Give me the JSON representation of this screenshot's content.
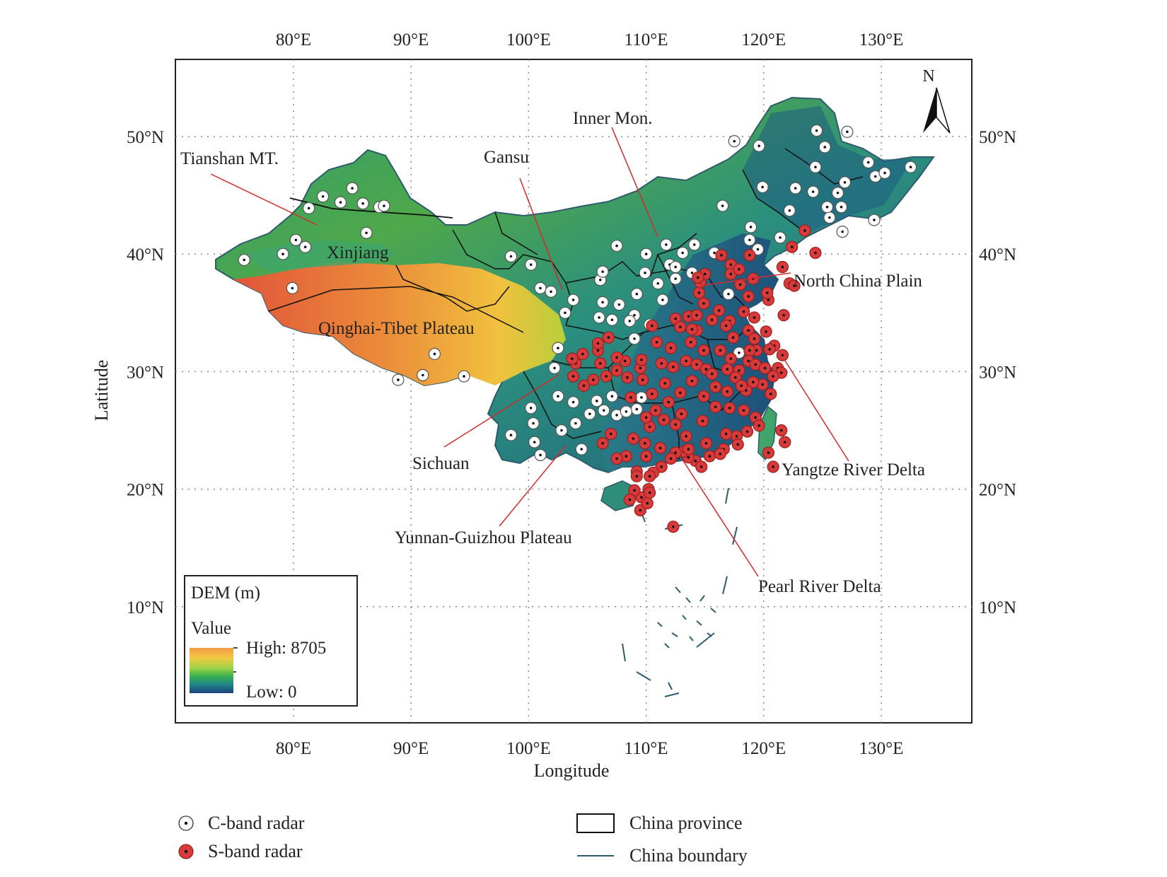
{
  "map": {
    "lon_ticks": [
      "80°E",
      "90°E",
      "100°E",
      "110°E",
      "120°E",
      "130°E"
    ],
    "lat_ticks": [
      "50°N",
      "40°N",
      "30°N",
      "20°N",
      "10°N"
    ],
    "x_axis_label": "Longitude",
    "y_axis_label": "Latitude",
    "north_label": "N",
    "annotations": [
      {
        "id": "tianshan",
        "text": "Tianshan MT."
      },
      {
        "id": "gansu",
        "text": "Gansu"
      },
      {
        "id": "inner-mon",
        "text": "Inner Mon."
      },
      {
        "id": "xinjiang",
        "text": "Xinjiang"
      },
      {
        "id": "north-china-plain",
        "text": "North China Plain"
      },
      {
        "id": "qinghai-tibet",
        "text": "Qinghai-Tibet Plateau"
      },
      {
        "id": "sichuan",
        "text": "Sichuan"
      },
      {
        "id": "yangtze",
        "text": "Yangtze River Delta"
      },
      {
        "id": "yunnan-guizhou",
        "text": "Yunnan-Guizhou Plateau"
      },
      {
        "id": "pearl",
        "text": "Pearl River Delta"
      }
    ]
  },
  "dem_legend": {
    "title": "DEM (m)",
    "value_label": "Value",
    "high_label": "High: 8705",
    "low_label": "Low: 0",
    "high": 8705,
    "low": 0
  },
  "legend": {
    "c_band": "C-band radar",
    "s_band": "S-band radar",
    "province": "China province",
    "boundary": "China boundary"
  },
  "colors": {
    "s_band_fill": "#d63a3a",
    "c_band_fill": "#ffffff",
    "boundary": "#2e5b6e",
    "annotation_line": "#d42a2a",
    "grid": "#8a8a8a"
  },
  "radars": {
    "c_band": [
      [
        75.8,
        39.5
      ],
      [
        79.1,
        40
      ],
      [
        81,
        40.6
      ],
      [
        80.2,
        41.2
      ],
      [
        79.9,
        37.1
      ],
      [
        82.5,
        44.9
      ],
      [
        81.3,
        43.9
      ],
      [
        84,
        44.4
      ],
      [
        85,
        45.6
      ],
      [
        85.9,
        44.3
      ],
      [
        87.3,
        44
      ],
      [
        87.7,
        44.1
      ],
      [
        86.2,
        41.8
      ],
      [
        88.9,
        29.3
      ],
      [
        91,
        29.7
      ],
      [
        92,
        31.5
      ],
      [
        94.5,
        29.6
      ],
      [
        98.5,
        39.8
      ],
      [
        100.2,
        39.1
      ],
      [
        101,
        37.1
      ],
      [
        101.9,
        36.8
      ],
      [
        103.8,
        36.1
      ],
      [
        103.1,
        35
      ],
      [
        102.5,
        32
      ],
      [
        102.2,
        30.3
      ],
      [
        102.5,
        27.9
      ],
      [
        100.2,
        26.9
      ],
      [
        100.4,
        25.6
      ],
      [
        100.5,
        24
      ],
      [
        101,
        22.9
      ],
      [
        98.5,
        24.6
      ],
      [
        102.8,
        25
      ],
      [
        104,
        25.6
      ],
      [
        103.8,
        27.4
      ],
      [
        104.5,
        23.4
      ],
      [
        105.2,
        26.4
      ],
      [
        105.8,
        27.5
      ],
      [
        106.4,
        26.7
      ],
      [
        107.1,
        27.9
      ],
      [
        107.5,
        26.3
      ],
      [
        109.6,
        27.8
      ],
      [
        109.2,
        26.8
      ],
      [
        108.3,
        26.6
      ],
      [
        106,
        34.6
      ],
      [
        106.3,
        35.9
      ],
      [
        107.1,
        34.4
      ],
      [
        107.7,
        35.7
      ],
      [
        106.1,
        37.8
      ],
      [
        106.3,
        38.5
      ],
      [
        107.5,
        40.7
      ],
      [
        109.2,
        36.6
      ],
      [
        109,
        34.8
      ],
      [
        108.6,
        34.3
      ],
      [
        110.3,
        34
      ],
      [
        109,
        32.8
      ],
      [
        109.9,
        38.4
      ],
      [
        110,
        40
      ],
      [
        111.7,
        40.8
      ],
      [
        111,
        37.5
      ],
      [
        111.4,
        36.1
      ],
      [
        112.5,
        37.9
      ],
      [
        112,
        39.1
      ],
      [
        112.5,
        38.9
      ],
      [
        113.1,
        40.1
      ],
      [
        113.9,
        38.4
      ],
      [
        114.1,
        40.8
      ],
      [
        115.8,
        40.1
      ],
      [
        117,
        36.6
      ],
      [
        117.9,
        31.6
      ],
      [
        116.5,
        44.1
      ],
      [
        117.5,
        49.6
      ],
      [
        119.6,
        49.2
      ],
      [
        118.9,
        42.3
      ],
      [
        121.4,
        41.4
      ],
      [
        119.9,
        45.7
      ],
      [
        122.2,
        43.7
      ],
      [
        122.7,
        45.6
      ],
      [
        124.2,
        45.3
      ],
      [
        124.4,
        47.4
      ],
      [
        124.5,
        50.5
      ],
      [
        125.2,
        49.1
      ],
      [
        127.1,
        50.4
      ],
      [
        126.6,
        44
      ],
      [
        126.3,
        45.2
      ],
      [
        126.9,
        46.1
      ],
      [
        128.9,
        47.8
      ],
      [
        129.5,
        46.6
      ],
      [
        130.3,
        46.9
      ],
      [
        129.4,
        42.9
      ],
      [
        126.7,
        41.9
      ],
      [
        125.6,
        43.1
      ],
      [
        125.4,
        44
      ],
      [
        132.5,
        47.4
      ],
      [
        119.5,
        40.4
      ],
      [
        118.8,
        41.2
      ]
    ],
    "s_band": [
      [
        123.5,
        42
      ],
      [
        122.4,
        40.6
      ],
      [
        121.6,
        38.9
      ],
      [
        124.4,
        40.1
      ],
      [
        122.2,
        37.5
      ],
      [
        122.6,
        37.3
      ],
      [
        120.4,
        36.1
      ],
      [
        121.7,
        34.8
      ],
      [
        120.3,
        36.7
      ],
      [
        118.7,
        36.4
      ],
      [
        118,
        37.4
      ],
      [
        119.1,
        37.9
      ],
      [
        117.2,
        39.1
      ],
      [
        116.4,
        39.9
      ],
      [
        115,
        38.3
      ],
      [
        117.2,
        38.3
      ],
      [
        114.5,
        36.7
      ],
      [
        114.6,
        37.6
      ],
      [
        114.4,
        38
      ],
      [
        117.9,
        38.7
      ],
      [
        118.8,
        39.9
      ],
      [
        114.9,
        35.8
      ],
      [
        113.6,
        34.7
      ],
      [
        114.3,
        34.8
      ],
      [
        115.6,
        34.4
      ],
      [
        116.2,
        35.2
      ],
      [
        117.1,
        34.3
      ],
      [
        118.3,
        35.1
      ],
      [
        119.2,
        34.6
      ],
      [
        118.7,
        33.5
      ],
      [
        119.2,
        32.8
      ],
      [
        120.2,
        33.4
      ],
      [
        120.9,
        32.2
      ],
      [
        121.6,
        31.4
      ],
      [
        120.5,
        31.9
      ],
      [
        119.4,
        31.8
      ],
      [
        118.8,
        31.8
      ],
      [
        117.4,
        32.9
      ],
      [
        116.8,
        33.9
      ],
      [
        116.3,
        31.8
      ],
      [
        117.2,
        31.1
      ],
      [
        116.9,
        30.2
      ],
      [
        117.9,
        30.1
      ],
      [
        118.7,
        30.9
      ],
      [
        119.3,
        30.6
      ],
      [
        120.1,
        30.3
      ],
      [
        121.2,
        30.3
      ],
      [
        121.5,
        29.9
      ],
      [
        120.8,
        29.6
      ],
      [
        120.6,
        28.1
      ],
      [
        119.9,
        28.9
      ],
      [
        119.1,
        29.1
      ],
      [
        118.5,
        28.4
      ],
      [
        117.6,
        29.5
      ],
      [
        116.9,
        28.3
      ],
      [
        115.9,
        28.7
      ],
      [
        114.9,
        27.9
      ],
      [
        115.9,
        27
      ],
      [
        117.1,
        26.9
      ],
      [
        118.3,
        26.7
      ],
      [
        119.3,
        26.1
      ],
      [
        119.6,
        25.4
      ],
      [
        118.6,
        24.9
      ],
      [
        117.7,
        24.5
      ],
      [
        116.6,
        23.4
      ],
      [
        117.8,
        23.8
      ],
      [
        115.4,
        22.8
      ],
      [
        114.2,
        22.4
      ],
      [
        113.6,
        22.7
      ],
      [
        113.2,
        23.2
      ],
      [
        112.5,
        23.1
      ],
      [
        112.1,
        22.6
      ],
      [
        111.3,
        21.9
      ],
      [
        110.6,
        21.4
      ],
      [
        109.2,
        21.5
      ],
      [
        108.3,
        22.8
      ],
      [
        108.9,
        24.3
      ],
      [
        110.3,
        25.3
      ],
      [
        111.2,
        23.5
      ],
      [
        109.9,
        23.9
      ],
      [
        106.3,
        23.9
      ],
      [
        107.5,
        22.6
      ],
      [
        113.4,
        24.5
      ],
      [
        114.8,
        25.8
      ],
      [
        115.1,
        23.9
      ],
      [
        113,
        26.4
      ],
      [
        111.9,
        27.4
      ],
      [
        112.9,
        28.2
      ],
      [
        113.9,
        29.2
      ],
      [
        111.6,
        29
      ],
      [
        112.3,
        30.4
      ],
      [
        114.3,
        30.6
      ],
      [
        113.4,
        30.9
      ],
      [
        115.1,
        30.2
      ],
      [
        111.3,
        30.7
      ],
      [
        112.1,
        32
      ],
      [
        113.8,
        32.5
      ],
      [
        114.3,
        33.5
      ],
      [
        112.5,
        34.5
      ],
      [
        113.9,
        33.6
      ],
      [
        110.5,
        33.9
      ],
      [
        110.9,
        32.5
      ],
      [
        109.5,
        30.3
      ],
      [
        108.2,
        30.9
      ],
      [
        107.5,
        31.2
      ],
      [
        106.6,
        29.6
      ],
      [
        106.1,
        30.7
      ],
      [
        105.9,
        31.8
      ],
      [
        104,
        30.7
      ],
      [
        104.6,
        31.5
      ],
      [
        103.8,
        29.6
      ],
      [
        104.7,
        28.8
      ],
      [
        105.5,
        29.3
      ],
      [
        103.7,
        31.1
      ],
      [
        105.9,
        32.4
      ],
      [
        106.8,
        32.9
      ],
      [
        107.5,
        30.1
      ],
      [
        108.4,
        29.5
      ],
      [
        109.6,
        31
      ],
      [
        109.7,
        29.3
      ],
      [
        110.5,
        28.1
      ],
      [
        111.5,
        25.9
      ],
      [
        110.8,
        26.7
      ],
      [
        112.5,
        25.5
      ],
      [
        113.6,
        23.4
      ],
      [
        114.7,
        21.9
      ],
      [
        116.3,
        23
      ],
      [
        116.8,
        24.7
      ],
      [
        118.1,
        28.8
      ],
      [
        115.6,
        29.8
      ],
      [
        114.9,
        31.8
      ],
      [
        112.9,
        33.8
      ],
      [
        110,
        22.8
      ],
      [
        110.2,
        20
      ],
      [
        109.6,
        19.3
      ],
      [
        110.3,
        19.7
      ],
      [
        109.2,
        21.1
      ],
      [
        109,
        19.9
      ],
      [
        109.5,
        18.2
      ],
      [
        110.1,
        18.8
      ],
      [
        108.6,
        19.1
      ],
      [
        110.3,
        21.1
      ],
      [
        112.3,
        16.8
      ],
      [
        121.5,
        25
      ],
      [
        121.8,
        24
      ],
      [
        120.4,
        23.1
      ],
      [
        120.8,
        21.9
      ],
      [
        108.7,
        27.8
      ],
      [
        110,
        26.1
      ],
      [
        107,
        24.7
      ]
    ]
  }
}
